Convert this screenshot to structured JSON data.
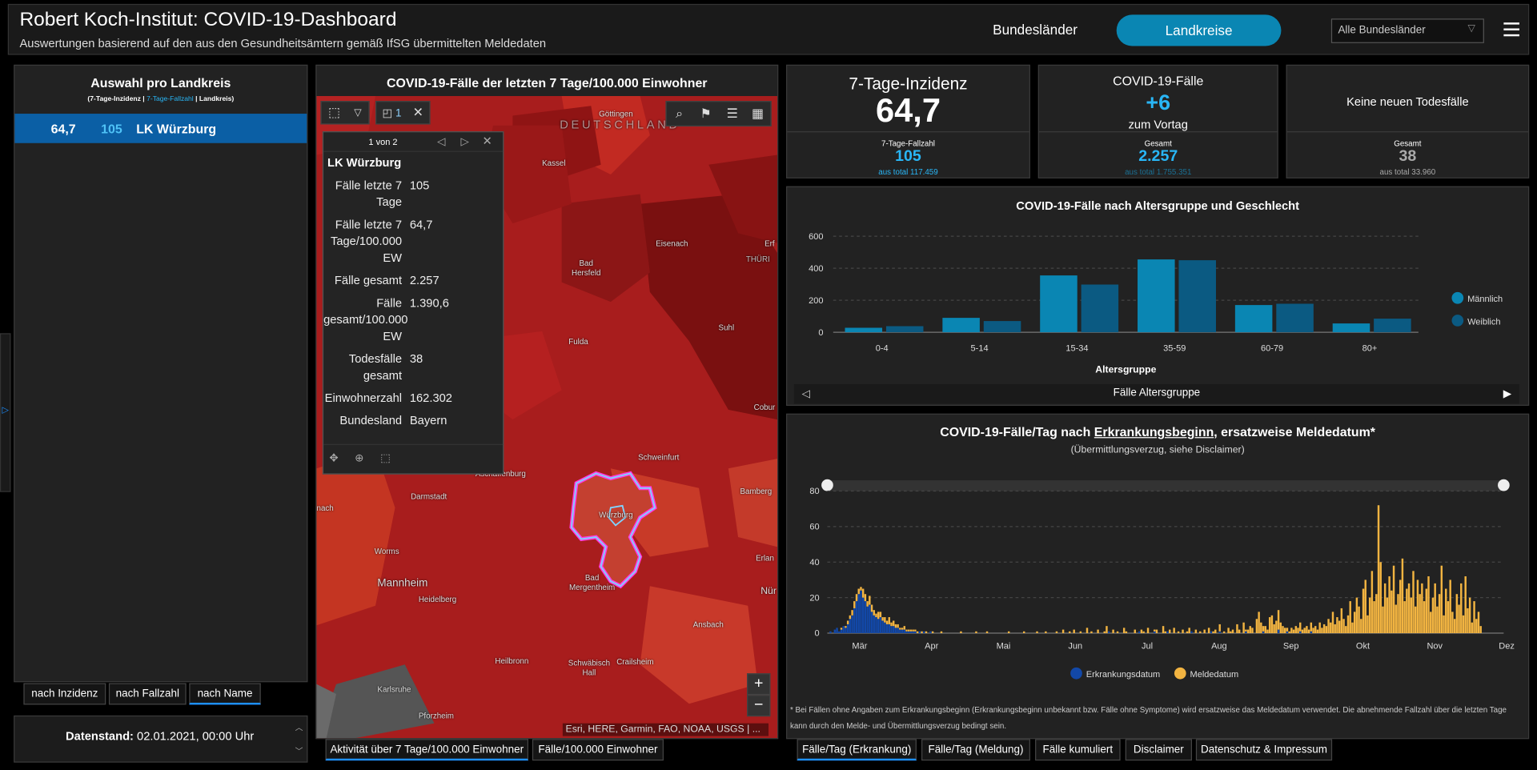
{
  "header": {
    "title": "Robert Koch-Institut: COVID-19-Dashboard",
    "subtitle": "Auswertungen basierend auf den aus den Gesundheitsämtern gemäß IfSG übermittelten Meldedaten",
    "tab_bundeslaender": "Bundesländer",
    "tab_landkreise": "Landkreise",
    "select_value": "Alle Bundesländer",
    "accent": "#0a86b3"
  },
  "left": {
    "title": "Auswahl pro Landkreis",
    "legend_a": "(7-Tage-Inzidenz | ",
    "legend_b": "7-Tage-Fallzahl",
    "legend_c": " | Landkreis)",
    "row_inzidenz": "64,7",
    "row_fallzahl": "105",
    "row_name": "LK Würzburg",
    "sort_inzidenz": "nach Inzidenz",
    "sort_fallzahl": "nach Fallzahl",
    "sort_name": "nach Name",
    "datenstand_label": "Datenstand:",
    "datenstand_value": "02.01.2021, 00:00 Uhr"
  },
  "map": {
    "title": "COVID-19-Fälle der letzten 7 Tage/100.000 Einwohner",
    "select_count": "1",
    "attribution": "Esri, HERE, Garmin, FAO, NOAA, USGS | ...",
    "tab_activity": "Aktivität über 7 Tage/100.000 Einwohner",
    "tab_faelle": "Fälle/100.000 Einwohner",
    "zoom_in": "+",
    "zoom_out": "−",
    "labels": {
      "deutschland": "DEUTSCHLAND",
      "goettingen": "Göttingen",
      "kassel": "Kassel",
      "eisenach": "Eisenach",
      "erf": "Erf",
      "thuer": "THÜRI",
      "hersfeld": "Bad Hersfeld",
      "fulda": "Fulda",
      "suhl": "Suhl",
      "cobur": "Cobur",
      "schweinfurt": "Schweinfurt",
      "aschaffenburg": "Aschaffenburg",
      "bamberg": "Bamberg",
      "darmstadt": "Darmstadt",
      "nach": "nach",
      "wuerzburg": "Würzburg",
      "erlan": "Erlan",
      "worms": "Worms",
      "mannheim": "Mannheim",
      "heidelberg": "Heidelberg",
      "mergentheim": "Bad Mergentheim",
      "nuer": "Nür",
      "ansbach": "Ansbach",
      "heilbronn": "Heilbronn",
      "schwhall": "Schwäbisch Hall",
      "crailsheim": "Crailsheim",
      "karlsruhe": "Karlsruhe",
      "pforzheim": "Pforzheim"
    }
  },
  "popup": {
    "pager": "1 von 2",
    "title": "LK Würzburg",
    "rows": [
      {
        "k": "Fälle letzte 7 Tage",
        "v": "105"
      },
      {
        "k": "Fälle letzte 7 Tage/100.000 EW",
        "v": "64,7"
      },
      {
        "k": "Fälle gesamt",
        "v": "2.257"
      },
      {
        "k": "Fälle gesamt/100.000 EW",
        "v": "1.390,6"
      },
      {
        "k": "Todesfälle gesamt",
        "v": "38"
      },
      {
        "k": "Einwohnerzahl",
        "v": "162.302"
      },
      {
        "k": "Bundesland",
        "v": "Bayern"
      }
    ]
  },
  "stats": {
    "inz_title": "7-Tage-Inzidenz",
    "inz_value": "64,7",
    "inz_sub_label": "7-Tage-Fallzahl",
    "inz_sub_value": "105",
    "inz_sub_total": "aus total 117.459",
    "faelle_title": "COVID-19-Fälle",
    "faelle_value": "+6",
    "faelle_caption": "zum Vortag",
    "faelle_sub_label": "Gesamt",
    "faelle_sub_value": "2.257",
    "faelle_sub_total": "aus total 1.755.351",
    "tod_title": "Keine neuen Todesfälle",
    "tod_sub_label": "Gesamt",
    "tod_sub_value": "38",
    "tod_sub_total": "aus total 33.960"
  },
  "age_chart": {
    "title": "COVID-19-Fälle nach Altersgruppe und Geschlecht",
    "footer": "Fälle Altersgruppe"
  },
  "daily_chart": {
    "title_a": "COVID-19-Fälle/Tag nach ",
    "title_b": "Erkrankungsbeginn",
    "title_c": ", ersatzweise Meldedatum*",
    "subtitle": "(Übermittlungsverzug, siehe Disclaimer)",
    "footnote": "* Bei Fällen ohne Angaben zum Erkrankungsbeginn (Erkrankungsbeginn unbekannt bzw. Fälle ohne Symptome) wird ersatzweise das Meldedatum verwendet. Die abnehmende Fallzahl über die letzten Tage kann durch den Melde- und Übermittlungsverzug bedingt sein."
  },
  "bottom_tabs": {
    "t1": "Fälle/Tag (Erkrankung)",
    "t2": "Fälle/Tag (Meldung)",
    "t3": "Fälle kumuliert",
    "t4": "Disclaimer",
    "t5": "Datenschutz & Impressum"
  },
  "chart_data": [
    {
      "type": "bar",
      "title": "COVID-19-Fälle nach Altersgruppe und Geschlecht",
      "xlabel": "Altersgruppe",
      "ylabel": "",
      "categories": [
        "0-4",
        "5-14",
        "15-34",
        "35-59",
        "60-79",
        "80+"
      ],
      "series": [
        {
          "name": "Männlich",
          "color": "#0a86b3",
          "values": [
            28,
            90,
            355,
            455,
            170,
            55
          ]
        },
        {
          "name": "Weiblich",
          "color": "#0b5a82",
          "values": [
            38,
            70,
            298,
            450,
            178,
            85
          ]
        }
      ],
      "ylim": [
        0,
        600
      ],
      "yticks": [
        0,
        200,
        400,
        600
      ],
      "grid": true,
      "legend": "right"
    },
    {
      "type": "bar",
      "stacked": true,
      "xlabel": "",
      "ylabel": "",
      "x_tick_labels": [
        "Mär",
        "Apr",
        "Mai",
        "Jun",
        "Jul",
        "Aug",
        "Sep",
        "Okt",
        "Nov",
        "Dez"
      ],
      "ylim": [
        0,
        80
      ],
      "yticks": [
        0,
        20,
        40,
        60,
        80
      ],
      "grid": true,
      "legend": "bottom",
      "series": [
        {
          "name": "Erkrankungsdatum",
          "color": "#1248a8",
          "values": [
            0,
            1,
            0,
            2,
            3,
            1,
            2,
            4,
            3,
            5,
            8,
            10,
            14,
            18,
            22,
            24,
            20,
            18,
            15,
            16,
            12,
            10,
            9,
            8,
            9,
            7,
            6,
            5,
            5,
            4,
            4,
            3,
            3,
            2,
            2,
            2,
            1,
            1,
            1,
            1,
            1,
            0,
            1,
            0,
            1,
            0,
            0,
            1,
            0,
            0,
            0,
            0,
            0,
            0,
            0,
            0,
            0,
            0,
            0,
            0,
            0,
            0,
            0,
            0,
            0,
            0,
            0,
            0,
            0,
            0,
            0,
            0,
            0,
            0,
            0,
            0,
            0,
            0,
            0,
            0,
            0,
            0,
            0,
            0,
            0,
            0,
            0,
            0,
            0,
            0,
            0,
            0,
            0,
            0,
            0,
            0,
            0,
            0,
            0,
            0,
            0,
            0,
            0,
            0,
            0,
            0,
            0,
            0,
            0,
            0,
            0,
            0,
            0,
            0,
            0,
            0,
            0,
            0,
            0,
            0,
            0,
            0,
            0,
            0,
            0,
            0,
            0,
            0,
            0,
            1,
            0,
            0,
            0,
            0,
            0,
            0,
            0,
            0,
            0,
            0,
            0,
            0,
            0,
            1,
            0,
            0,
            0,
            0,
            0,
            0,
            1,
            0,
            0,
            0,
            0,
            0,
            1,
            0,
            0,
            0,
            0,
            0,
            0,
            0,
            0,
            0,
            0,
            1,
            0,
            0,
            0,
            0,
            0,
            0,
            0,
            0,
            1,
            0,
            0,
            0,
            1,
            0,
            0,
            0,
            0,
            0,
            0,
            0,
            0,
            0,
            0,
            0,
            1,
            0,
            0,
            0,
            0,
            0,
            0,
            0,
            1,
            0,
            0,
            0,
            0,
            0,
            0,
            2,
            0,
            0,
            0,
            1,
            0,
            0,
            0,
            0,
            0,
            1,
            0,
            0,
            0,
            0,
            1,
            0,
            0,
            0,
            0,
            0,
            0,
            0,
            0,
            0,
            0,
            0,
            0,
            0,
            0,
            0,
            0,
            0,
            0,
            0,
            0,
            0,
            0,
            0,
            0,
            0,
            0,
            0,
            0,
            0,
            0,
            0,
            0,
            0,
            0,
            0,
            0,
            0,
            0,
            0,
            0,
            0,
            0,
            0,
            0,
            0,
            0,
            0,
            0,
            0,
            0,
            0,
            0,
            0,
            0,
            0,
            0,
            0,
            0,
            0,
            0,
            0,
            0,
            0,
            0,
            0,
            0,
            0,
            0,
            0,
            0,
            0,
            0,
            0,
            0,
            0,
            0,
            0,
            0,
            0,
            0,
            0,
            0,
            0,
            0,
            0,
            0,
            0,
            0
          ]
        },
        {
          "name": "Meldedatum",
          "color": "#f2b441",
          "values": [
            0,
            0,
            0,
            0,
            0,
            0,
            1,
            0,
            1,
            2,
            2,
            3,
            4,
            4,
            3,
            2,
            5,
            4,
            3,
            5,
            4,
            3,
            2,
            4,
            3,
            2,
            3,
            2,
            4,
            2,
            3,
            2,
            2,
            1,
            1,
            2,
            1,
            1,
            1,
            1,
            1,
            1,
            0,
            1,
            0,
            1,
            0,
            0,
            1,
            0,
            0,
            0,
            1,
            0,
            0,
            0,
            0,
            0,
            0,
            0,
            0,
            1,
            0,
            0,
            0,
            0,
            0,
            0,
            1,
            0,
            0,
            0,
            0,
            1,
            0,
            0,
            0,
            0,
            0,
            0,
            0,
            0,
            0,
            1,
            0,
            0,
            0,
            0,
            0,
            0,
            1,
            0,
            0,
            0,
            0,
            0,
            1,
            0,
            0,
            0,
            1,
            0,
            0,
            0,
            0,
            1,
            0,
            0,
            2,
            0,
            0,
            1,
            0,
            2,
            0,
            0,
            1,
            0,
            0,
            3,
            0,
            1,
            0,
            0,
            2,
            0,
            0,
            1,
            4,
            0,
            0,
            2,
            0,
            1,
            0,
            0,
            3,
            1,
            0,
            0,
            0,
            2,
            0,
            0,
            2,
            1,
            0,
            3,
            0,
            0,
            1,
            2,
            0,
            0,
            4,
            1,
            0,
            2,
            0,
            3,
            0,
            1,
            0,
            2,
            0,
            1,
            3,
            0,
            0,
            2,
            0,
            1,
            0,
            2,
            0,
            3,
            0,
            1,
            2,
            0,
            4,
            0,
            1,
            0,
            3,
            1,
            2,
            0,
            5,
            2,
            0,
            6,
            1,
            2,
            4,
            3,
            0,
            8,
            12,
            6,
            3,
            4,
            2,
            9,
            10,
            5,
            7,
            11,
            6,
            4,
            3,
            2,
            1,
            3,
            2,
            4,
            3,
            5,
            2,
            3,
            4,
            2,
            5,
            3,
            4,
            2,
            6,
            3,
            5,
            4,
            8,
            6,
            12,
            5,
            9,
            7,
            14,
            8,
            4,
            10,
            18,
            6,
            12,
            20,
            15,
            8,
            25,
            30,
            10,
            20,
            35,
            18,
            22,
            72,
            40,
            15,
            28,
            20,
            32,
            24,
            38,
            16,
            22,
            30,
            42,
            18,
            25,
            28,
            20,
            35,
            15,
            30,
            22,
            28,
            18,
            25,
            32,
            12,
            20,
            28,
            15,
            22,
            38,
            10,
            25,
            18,
            30,
            12,
            8,
            22,
            16,
            28,
            10,
            32,
            14,
            20,
            6,
            18,
            8,
            12,
            4
          ]
        }
      ]
    }
  ]
}
